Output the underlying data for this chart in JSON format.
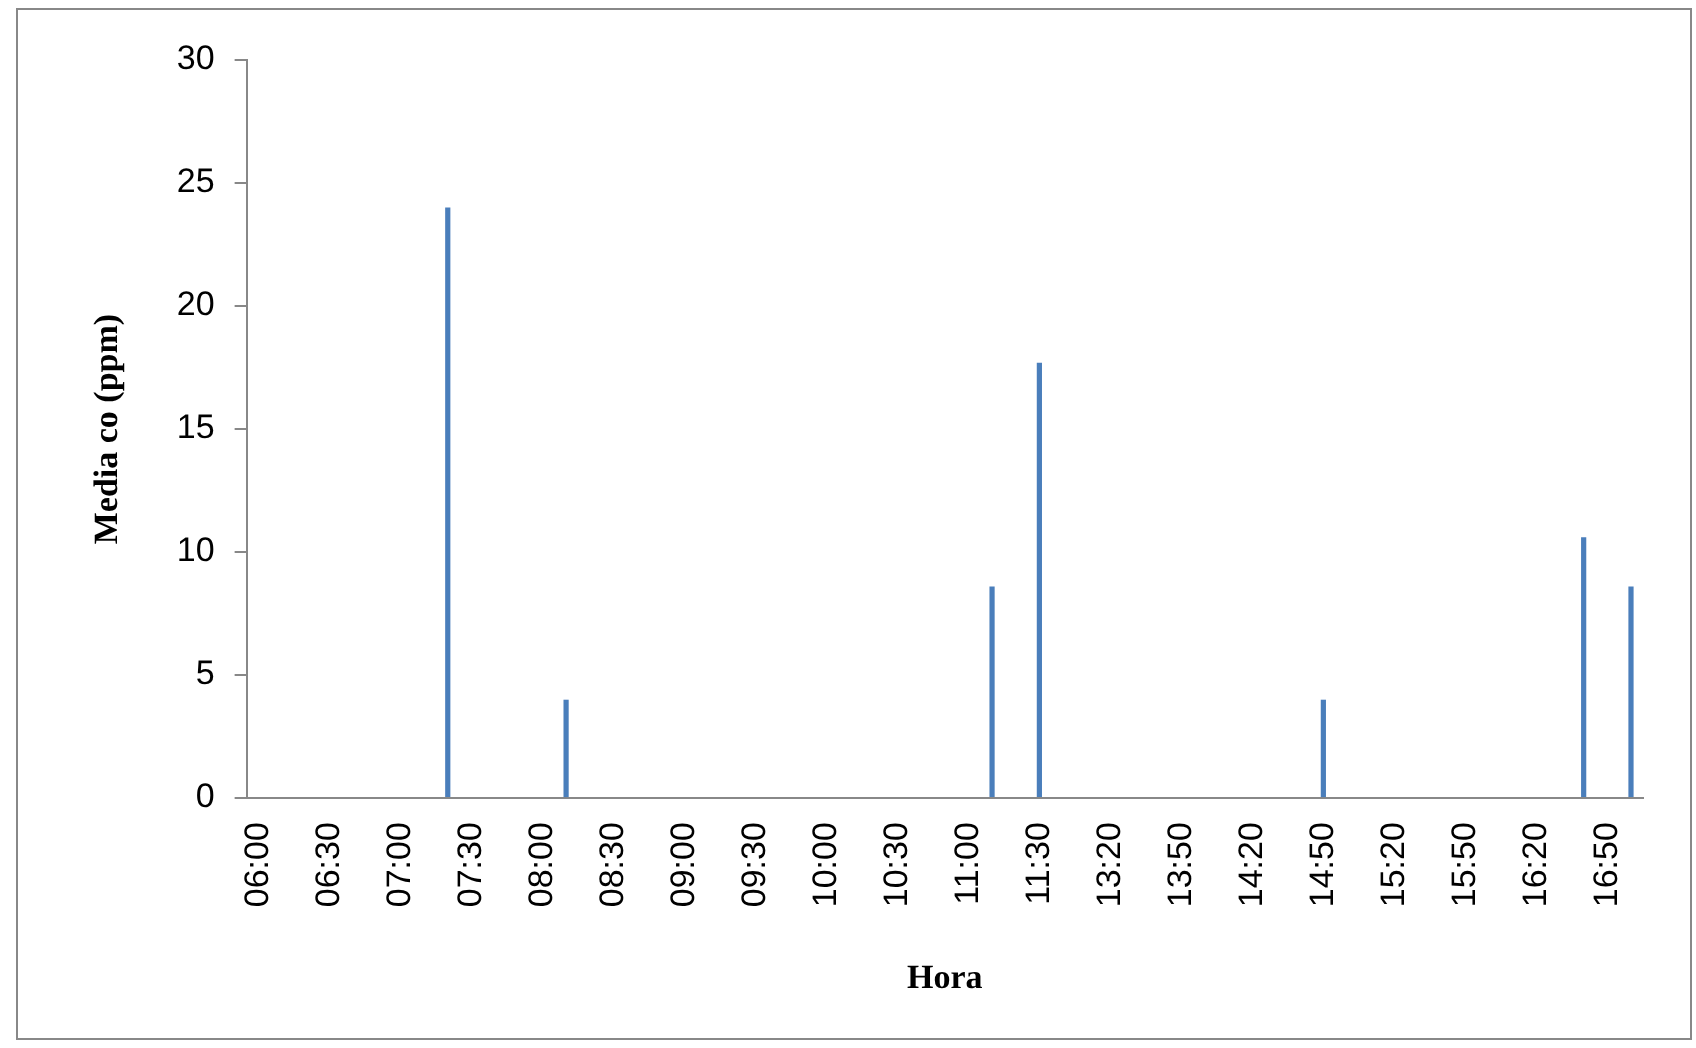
{
  "chart_data": {
    "type": "bar",
    "xlabel": "Hora",
    "ylabel": "Media co (ppm)",
    "categories": [
      "06:00",
      null,
      null,
      "06:30",
      null,
      null,
      "07:00",
      null,
      null,
      "07:30",
      null,
      null,
      "08:00",
      null,
      null,
      "08:30",
      null,
      null,
      "09:00",
      null,
      null,
      "09:30",
      null,
      null,
      "10:00",
      null,
      null,
      "10:30",
      null,
      null,
      "11:00",
      null,
      null,
      "11:30",
      null,
      null,
      "13:20",
      null,
      null,
      "13:50",
      null,
      null,
      "14:20",
      null,
      null,
      "14:50",
      null,
      null,
      "15:20",
      null,
      null,
      "15:50",
      null,
      null,
      "16:20",
      null,
      null,
      "16:50",
      null
    ],
    "values": [
      null,
      null,
      null,
      null,
      null,
      null,
      null,
      null,
      24,
      null,
      null,
      null,
      null,
      4,
      null,
      null,
      null,
      null,
      null,
      null,
      null,
      null,
      null,
      null,
      null,
      null,
      null,
      null,
      null,
      null,
      null,
      8.6,
      null,
      17.7,
      null,
      null,
      null,
      null,
      null,
      null,
      null,
      null,
      null,
      null,
      null,
      4,
      null,
      null,
      null,
      null,
      null,
      null,
      null,
      null,
      null,
      null,
      10.6,
      null,
      8.6
    ],
    "color": "#4a7ebb",
    "ylim": [
      0,
      30
    ],
    "yticks": [
      0,
      5,
      10,
      15,
      20,
      25,
      30
    ],
    "grid": false,
    "legend": false
  }
}
